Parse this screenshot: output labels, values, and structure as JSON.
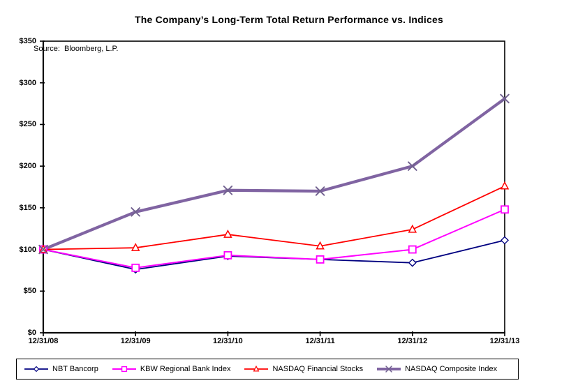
{
  "title": "The Company’s Long-Term Total Return Performance vs. Indices",
  "source_note": "Source:  Bloomberg, L.P.",
  "chart_data": {
    "type": "line",
    "x": [
      "12/31/08",
      "12/31/09",
      "12/31/10",
      "12/31/11",
      "12/31/12",
      "12/31/13"
    ],
    "y_ticks": [
      "$0",
      "$50",
      "$100",
      "$150",
      "$200",
      "$250",
      "$300",
      "$350"
    ],
    "ylim": [
      0,
      350
    ],
    "y_tick_step": 50,
    "grid": false,
    "legend_position": "bottom",
    "series": [
      {
        "name": "NBT Bancorp",
        "color": "#000080",
        "marker": "diamond",
        "line_width": 1.8,
        "values": [
          100,
          76,
          92,
          88,
          84,
          111
        ]
      },
      {
        "name": "KBW Regional Bank Index",
        "color": "#FF00FF",
        "marker": "square",
        "line_width": 2.0,
        "values": [
          100,
          78,
          93,
          88,
          100,
          148
        ]
      },
      {
        "name": "NASDAQ Financial Stocks",
        "color": "#FF0000",
        "marker": "triangle",
        "line_width": 1.8,
        "values": [
          100,
          102,
          118,
          104,
          124,
          176
        ]
      },
      {
        "name": "NASDAQ Composite Index",
        "color": "#8064A2",
        "marker": "x",
        "line_width": 4.2,
        "values": [
          100,
          145,
          171,
          170,
          200,
          281
        ]
      }
    ],
    "marker_x_color": "#71618F"
  }
}
